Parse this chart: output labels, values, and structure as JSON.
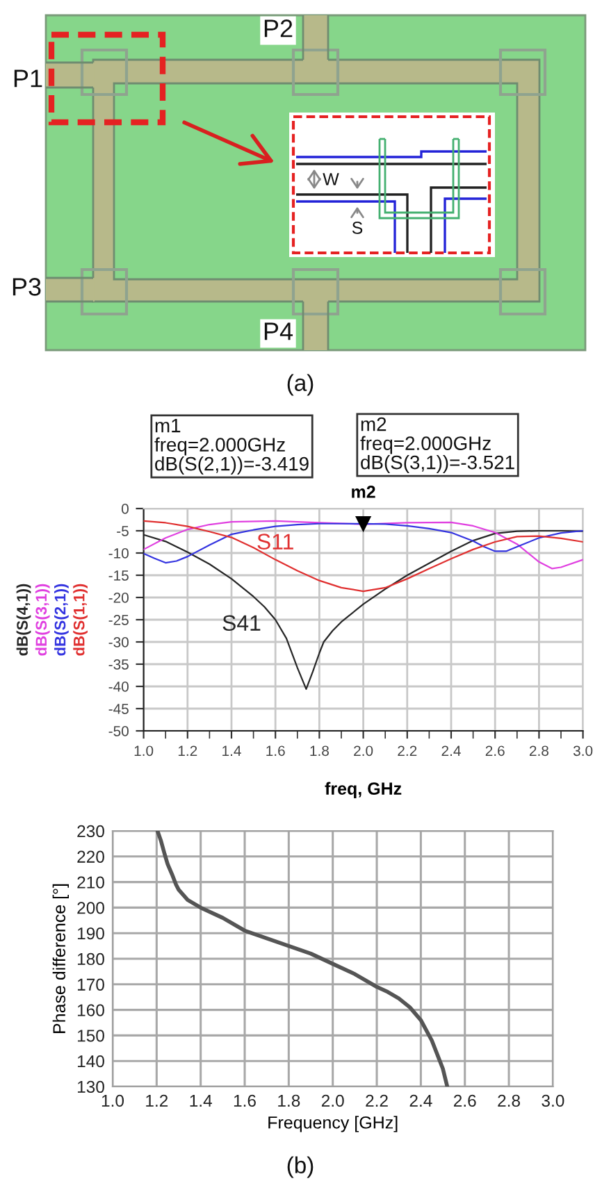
{
  "chart_data": [
    {
      "type": "other",
      "annotations": [
        "P1",
        "P2",
        "P3",
        "P4",
        "W",
        "S",
        "(a)"
      ]
    },
    {
      "type": "line",
      "xlabel": "freq, GHz",
      "annotations": [
        "m1\nfreq=2.000GHz\ndB(S(2,1))=-3.419",
        "m2\nfreq=2.000GHz\ndB(S(3,1))=-3.521",
        {
          "text": "m2",
          "x": 2.0,
          "y": -3.521
        },
        {
          "text": "S11",
          "x": 1.6,
          "y": -11.5
        },
        {
          "text": "S41",
          "x": 1.65,
          "y": -29.2
        }
      ],
      "xlim": [
        1.0,
        3.0
      ],
      "xticks": [
        {
          "value": 1.0,
          "label": "1.0"
        },
        {
          "value": 1.2,
          "label": "1.2"
        },
        {
          "value": 1.4,
          "label": "1.4"
        },
        {
          "value": 1.6,
          "label": "1.6"
        },
        {
          "value": 1.8,
          "label": "1.8"
        },
        {
          "value": 2.0,
          "label": "2.0"
        },
        {
          "value": 2.2,
          "label": "2.2"
        },
        {
          "value": 2.4,
          "label": "2.4"
        },
        {
          "value": 2.6,
          "label": "2.6"
        },
        {
          "value": 2.8,
          "label": "2.8"
        },
        {
          "value": 3.0,
          "label": "3.0"
        }
      ],
      "ylim": [
        -50,
        0
      ],
      "yticks": [
        -50,
        -45,
        -40,
        -35,
        -30,
        -25,
        -20,
        -15,
        -10,
        -5,
        0
      ],
      "grid": true,
      "line_style": "solid",
      "series": [
        {
          "name": "dB(S(4,1))",
          "color": "#262626",
          "x": [
            1.0,
            1.1,
            1.2,
            1.3,
            1.4,
            1.5,
            1.55,
            1.6,
            1.65,
            1.7,
            1.74,
            1.77,
            1.8,
            1.82,
            1.86,
            1.9,
            2.0,
            2.1,
            2.2,
            2.3,
            2.4,
            2.5,
            2.6,
            2.7,
            2.8,
            2.9,
            3.0
          ],
          "values": [
            -5.9,
            -7.4,
            -9.8,
            -12.5,
            -15.8,
            -19.8,
            -22.1,
            -25.0,
            -29.2,
            -35.8,
            -40.6,
            -36.7,
            -32.5,
            -30.0,
            -27.5,
            -25.5,
            -21.5,
            -18.1,
            -15.0,
            -12.3,
            -9.6,
            -7.2,
            -5.6,
            -5.1,
            -5.0,
            -5.0,
            -5.1
          ]
        },
        {
          "name": "dB(S(3,1))",
          "color": "#e040e0",
          "x": [
            1.0,
            1.1,
            1.2,
            1.3,
            1.4,
            1.6,
            1.8,
            2.0,
            2.2,
            2.4,
            2.5,
            2.6,
            2.7,
            2.8,
            2.86,
            2.9,
            3.0
          ],
          "values": [
            -9.2,
            -6.6,
            -4.7,
            -3.6,
            -3.0,
            -2.8,
            -3.2,
            -3.521,
            -3.2,
            -3.1,
            -3.9,
            -5.4,
            -8.0,
            -12.0,
            -13.5,
            -13.2,
            -11.5
          ]
        },
        {
          "name": "dB(S(2,1))",
          "color": "#3434e0",
          "x": [
            1.0,
            1.05,
            1.1,
            1.15,
            1.2,
            1.3,
            1.4,
            1.5,
            1.6,
            1.7,
            1.8,
            1.9,
            2.0,
            2.1,
            2.2,
            2.3,
            2.4,
            2.5,
            2.55,
            2.6,
            2.65,
            2.7,
            2.8,
            2.9,
            3.0
          ],
          "values": [
            -10.1,
            -11.2,
            -12.2,
            -11.8,
            -10.8,
            -8.2,
            -5.8,
            -4.8,
            -4.0,
            -3.6,
            -3.4,
            -3.4,
            -3.419,
            -3.5,
            -3.9,
            -4.5,
            -5.4,
            -7.3,
            -8.6,
            -9.6,
            -9.6,
            -8.6,
            -6.6,
            -5.5,
            -5.0
          ]
        },
        {
          "name": "dB(S(1,1))",
          "color": "#e03030",
          "x": [
            1.0,
            1.1,
            1.2,
            1.3,
            1.4,
            1.5,
            1.6,
            1.7,
            1.8,
            1.9,
            2.0,
            2.1,
            2.2,
            2.3,
            2.4,
            2.5,
            2.6,
            2.7,
            2.8,
            2.9,
            3.0
          ],
          "values": [
            -2.8,
            -3.2,
            -4.0,
            -5.2,
            -6.5,
            -8.8,
            -11.5,
            -14.0,
            -16.2,
            -17.8,
            -18.6,
            -17.8,
            -15.8,
            -13.5,
            -11.3,
            -9.2,
            -7.5,
            -6.3,
            -6.2,
            -6.7,
            -7.5
          ]
        },
        {
          "type": "scatter",
          "marker": "triangle",
          "color": "#000000",
          "x": [
            2.0
          ],
          "values": [
            -3.521
          ]
        }
      ]
    },
    {
      "type": "line",
      "xlabel": "Frequency [GHz]",
      "ylabel": "Phase difference [°]",
      "annotations": [
        "(b)"
      ],
      "xlim": [
        1.0,
        3.0
      ],
      "xticks": [
        {
          "value": 1.0,
          "label": "1.0"
        },
        {
          "value": 1.2,
          "label": "1.2"
        },
        {
          "value": 1.4,
          "label": "1.4"
        },
        {
          "value": 1.6,
          "label": "1.6"
        },
        {
          "value": 1.8,
          "label": "1.8"
        },
        {
          "value": 2.0,
          "label": "2.0"
        },
        {
          "value": 2.2,
          "label": "2.2"
        },
        {
          "value": 2.4,
          "label": "2.4"
        },
        {
          "value": 2.6,
          "label": "2.6"
        },
        {
          "value": 2.8,
          "label": "2.8"
        },
        {
          "value": 3.0,
          "label": "3.0"
        }
      ],
      "ylim": [
        130,
        230
      ],
      "yticks": [
        130,
        140,
        150,
        160,
        170,
        180,
        190,
        200,
        210,
        220,
        230
      ],
      "grid": true,
      "line_style": "solid",
      "series": [
        {
          "color": "#555555",
          "x": [
            1.204,
            1.22,
            1.236,
            1.25,
            1.27,
            1.288,
            1.3,
            1.341,
            1.4,
            1.5,
            1.6,
            1.7,
            1.8,
            1.9,
            2.0,
            2.1,
            2.2,
            2.25,
            2.3,
            2.35,
            2.4,
            2.45,
            2.5,
            2.52
          ],
          "values": [
            230,
            226,
            221,
            217,
            213,
            209,
            207,
            203,
            200,
            196,
            191,
            188,
            185,
            182,
            178,
            174,
            169,
            167,
            164.5,
            161,
            156,
            148,
            137,
            130
          ]
        }
      ]
    }
  ]
}
